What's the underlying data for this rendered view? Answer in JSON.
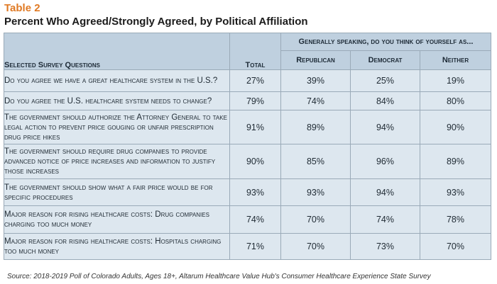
{
  "table_label": "Table 2",
  "title": "Percent Who Agreed/Strongly Agreed, by Political Affiliation",
  "headers": {
    "question": "Selected Survey Questions",
    "total": "Total",
    "group": "Generally speaking, do you think of yourself as...",
    "republican": "Republican",
    "democrat": "Democrat",
    "neither": "Neither"
  },
  "rows": [
    {
      "question": "Do you agree we have a great healthcare system in the U.S.?",
      "total": "27%",
      "republican": "39%",
      "democrat": "25%",
      "neither": "19%"
    },
    {
      "question": "Do you agree the U.S. healthcare system needs to change?",
      "total": "79%",
      "republican": "74%",
      "democrat": "84%",
      "neither": "80%"
    },
    {
      "question": "The government should authorize the Attorney General to take legal action to prevent price gouging or unfair prescription drug price hikes",
      "total": "91%",
      "republican": "89%",
      "democrat": "94%",
      "neither": "90%"
    },
    {
      "question": "The government should require drug companies to provide advanced notice of price increases and information to justify those increases",
      "total": "90%",
      "republican": "85%",
      "democrat": "96%",
      "neither": "89%"
    },
    {
      "question": "The government should show what a fair price would be for specific procedures",
      "total": "93%",
      "republican": "93%",
      "democrat": "94%",
      "neither": "93%"
    },
    {
      "question": "Major reason for rising healthcare costs: Drug companies charging too much money",
      "total": "74%",
      "republican": "70%",
      "democrat": "74%",
      "neither": "78%"
    },
    {
      "question": "Major reason for rising healthcare costs: Hospitals charging too much money",
      "total": "71%",
      "republican": "70%",
      "democrat": "73%",
      "neither": "70%"
    }
  ],
  "source": "Source: 2018-2019 Poll of Colorado Adults, Ages 18+, Altarum Healthcare Value Hub's Consumer Healthcare Experience State Survey"
}
